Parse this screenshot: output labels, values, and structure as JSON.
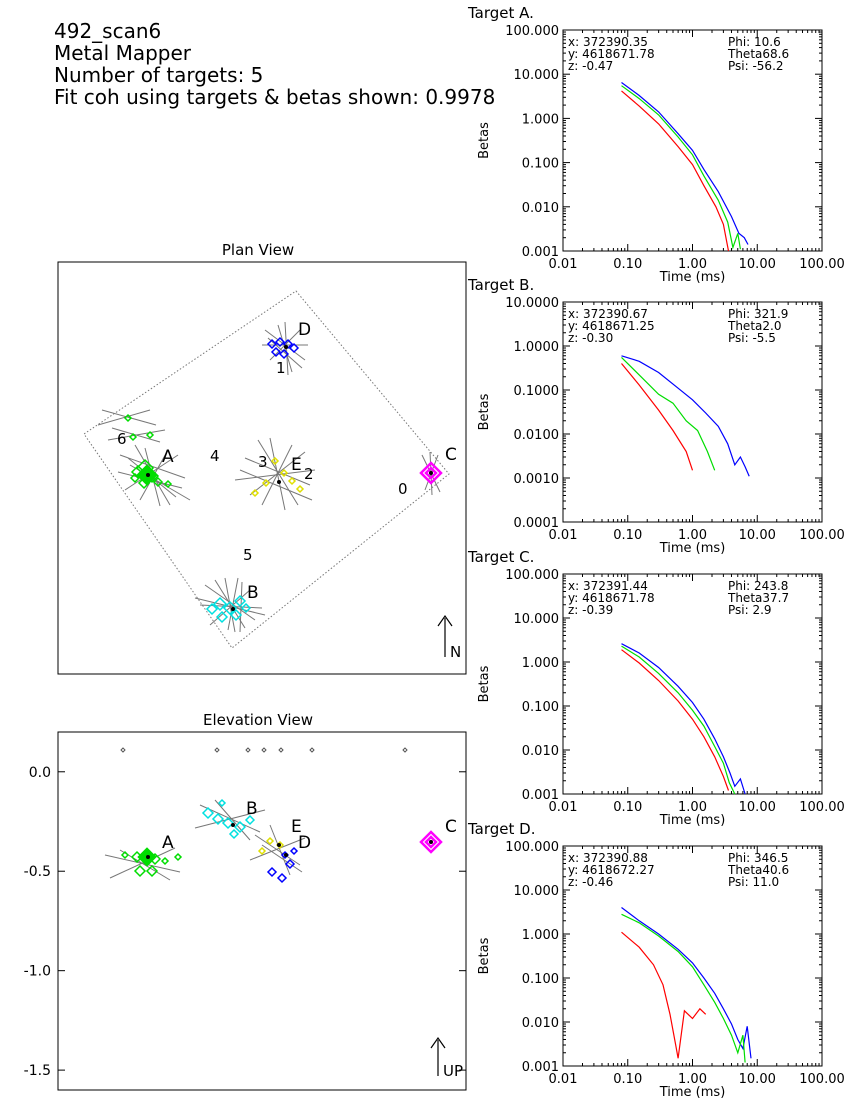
{
  "header": {
    "scan_name": "492_scan6",
    "sensor": "Metal Mapper",
    "targets_line": "Number of targets: 5",
    "fit_line": "Fit coh using targets & betas shown: 0.9978"
  },
  "colors": {
    "red": "#ff0000",
    "green": "#00dd00",
    "blue": "#0000ff",
    "cyan": "#00e0e0",
    "yellow": "#e0e000",
    "magenta": "#ff00ff",
    "gray": "#888888"
  },
  "chart_data": [
    {
      "type": "scatter",
      "title": "Plan View",
      "north_label": "N",
      "targets": [
        {
          "label": "A",
          "color": "green"
        },
        {
          "label": "B",
          "color": "cyan"
        },
        {
          "label": "C",
          "color": "magenta"
        },
        {
          "label": "D",
          "color": "blue"
        },
        {
          "label": "E",
          "subscript": "2",
          "color": "yellow"
        }
      ],
      "numbers": [
        "0",
        "1",
        "3",
        "4",
        "5",
        "6"
      ]
    },
    {
      "type": "scatter",
      "title": "Elevation View",
      "up_label": "UP",
      "ylim": [
        -1.6,
        0.2
      ],
      "yticks": [
        "0.0",
        "-0.5",
        "-1.0",
        "-1.5"
      ],
      "ytick_values": [
        0.0,
        -0.5,
        -1.0,
        -1.5
      ],
      "targets": [
        {
          "label": "A",
          "z": -0.47,
          "color": "green"
        },
        {
          "label": "B",
          "z": -0.3,
          "color": "cyan"
        },
        {
          "label": "C",
          "z": -0.39,
          "color": "magenta"
        },
        {
          "label": "D",
          "z": -0.46,
          "color": "blue"
        },
        {
          "label": "E",
          "z": -0.4,
          "color": "yellow"
        }
      ]
    },
    {
      "type": "line",
      "title": "Target A.",
      "ylabel": "Betas",
      "xlabel": "Time (ms)",
      "xscale": "log",
      "yscale": "log",
      "xticks": [
        "0.01",
        "0.10",
        "1.00",
        "10.00",
        "100.00"
      ],
      "yticks": [
        "100.000",
        "10.000",
        "1.000",
        "0.100",
        "0.010",
        "0.001"
      ],
      "ylim": [
        0.001,
        100
      ],
      "info": {
        "x": "x: 372390.35",
        "y": "y: 4618671.78",
        "z": "z: -0.47",
        "phi": "Phi:  10.6",
        "theta": "Theta68.6",
        "psi": "Psi:  -56.2"
      },
      "series": [
        {
          "color": "blue",
          "points": [
            [
              0.08,
              6.5
            ],
            [
              0.15,
              3.3
            ],
            [
              0.3,
              1.4
            ],
            [
              0.6,
              0.45
            ],
            [
              1.0,
              0.19
            ],
            [
              1.5,
              0.07
            ],
            [
              2.5,
              0.022
            ],
            [
              4.0,
              0.006
            ],
            [
              5.2,
              0.0025
            ],
            [
              6.3,
              0.002
            ],
            [
              7.2,
              0.0014
            ]
          ]
        },
        {
          "color": "green",
          "points": [
            [
              0.08,
              5.5
            ],
            [
              0.15,
              2.8
            ],
            [
              0.3,
              1.2
            ],
            [
              0.6,
              0.38
            ],
            [
              1.0,
              0.15
            ],
            [
              1.5,
              0.05
            ],
            [
              2.5,
              0.014
            ],
            [
              3.5,
              0.0045
            ],
            [
              4.2,
              0.0012
            ],
            [
              5.0,
              0.0025
            ],
            [
              5.5,
              0.0011
            ]
          ]
        },
        {
          "color": "red",
          "points": [
            [
              0.08,
              4.2
            ],
            [
              0.15,
              1.9
            ],
            [
              0.3,
              0.75
            ],
            [
              0.6,
              0.23
            ],
            [
              1.0,
              0.09
            ],
            [
              1.5,
              0.03
            ],
            [
              2.3,
              0.01
            ],
            [
              3.0,
              0.004
            ],
            [
              3.6,
              0.001
            ]
          ]
        }
      ]
    },
    {
      "type": "line",
      "title": "Target B.",
      "ylabel": "Betas",
      "xlabel": "Time (ms)",
      "xscale": "log",
      "yscale": "log",
      "xticks": [
        "0.01",
        "0.10",
        "1.00",
        "10.00",
        "100.00"
      ],
      "yticks": [
        "10.0000",
        "1.0000",
        "0.1000",
        "0.0100",
        "0.0010",
        "0.0001"
      ],
      "ylim": [
        0.0001,
        10
      ],
      "info": {
        "x": "x: 372390.67",
        "y": "y: 4618671.25",
        "z": "z: -0.30",
        "phi": "Phi:  321.9",
        "theta": "Theta2.0",
        "psi": "Psi:  -5.5"
      },
      "series": [
        {
          "color": "blue",
          "points": [
            [
              0.08,
              0.6
            ],
            [
              0.15,
              0.45
            ],
            [
              0.3,
              0.25
            ],
            [
              0.6,
              0.11
            ],
            [
              1.0,
              0.06
            ],
            [
              1.6,
              0.03
            ],
            [
              2.5,
              0.015
            ],
            [
              3.5,
              0.006
            ],
            [
              4.5,
              0.002
            ],
            [
              5.5,
              0.003
            ],
            [
              6.5,
              0.0018
            ],
            [
              7.5,
              0.0011
            ]
          ]
        },
        {
          "color": "green",
          "points": [
            [
              0.08,
              0.55
            ],
            [
              0.15,
              0.22
            ],
            [
              0.3,
              0.08
            ],
            [
              0.5,
              0.05
            ],
            [
              0.8,
              0.02
            ],
            [
              1.2,
              0.012
            ],
            [
              1.7,
              0.004
            ],
            [
              2.2,
              0.0015
            ]
          ]
        },
        {
          "color": "red",
          "points": [
            [
              0.08,
              0.4
            ],
            [
              0.15,
              0.13
            ],
            [
              0.3,
              0.035
            ],
            [
              0.5,
              0.012
            ],
            [
              0.8,
              0.004
            ],
            [
              1.0,
              0.0015
            ]
          ]
        }
      ]
    },
    {
      "type": "line",
      "title": "Target C.",
      "ylabel": "Betas",
      "xlabel": "Time (ms)",
      "xscale": "log",
      "yscale": "log",
      "xticks": [
        "0.01",
        "0.10",
        "1.00",
        "10.00",
        "100.00"
      ],
      "yticks": [
        "100.000",
        "10.000",
        "1.000",
        "0.100",
        "0.010",
        "0.001"
      ],
      "ylim": [
        0.001,
        100
      ],
      "info": {
        "x": "x: 372391.44",
        "y": "y: 4618671.78",
        "z": "z: -0.39",
        "phi": "Phi:  243.8",
        "theta": "Theta37.7",
        "psi": "Psi:  2.9"
      },
      "series": [
        {
          "color": "blue",
          "points": [
            [
              0.08,
              2.6
            ],
            [
              0.15,
              1.6
            ],
            [
              0.3,
              0.75
            ],
            [
              0.6,
              0.28
            ],
            [
              1.0,
              0.12
            ],
            [
              1.5,
              0.05
            ],
            [
              2.2,
              0.018
            ],
            [
              3.0,
              0.007
            ],
            [
              3.8,
              0.003
            ],
            [
              4.5,
              0.0015
            ],
            [
              5.5,
              0.0022
            ],
            [
              6.5,
              0.001
            ]
          ]
        },
        {
          "color": "green",
          "points": [
            [
              0.08,
              2.3
            ],
            [
              0.15,
              1.3
            ],
            [
              0.3,
              0.55
            ],
            [
              0.6,
              0.2
            ],
            [
              1.0,
              0.08
            ],
            [
              1.5,
              0.035
            ],
            [
              2.2,
              0.012
            ],
            [
              3.0,
              0.005
            ],
            [
              3.7,
              0.0018
            ],
            [
              4.5,
              0.001
            ]
          ]
        },
        {
          "color": "red",
          "points": [
            [
              0.08,
              1.9
            ],
            [
              0.15,
              0.95
            ],
            [
              0.3,
              0.38
            ],
            [
              0.6,
              0.13
            ],
            [
              1.0,
              0.05
            ],
            [
              1.5,
              0.02
            ],
            [
              2.2,
              0.007
            ],
            [
              3.0,
              0.0025
            ],
            [
              3.6,
              0.0012
            ]
          ]
        }
      ]
    },
    {
      "type": "line",
      "title": "Target D.",
      "ylabel": "Betas",
      "xlabel": "Time (ms)",
      "xscale": "log",
      "yscale": "log",
      "xticks": [
        "0.01",
        "0.10",
        "1.00",
        "10.00",
        "100.00"
      ],
      "yticks": [
        "100.000",
        "10.000",
        "1.000",
        "0.100",
        "0.010",
        "0.001"
      ],
      "ylim": [
        0.001,
        100
      ],
      "info": {
        "x": "x: 372390.88",
        "y": "y: 4618672.27",
        "z": "z: -0.46",
        "phi": "Phi:  346.5",
        "theta": "Theta40.6",
        "psi": "Psi:  11.0"
      },
      "series": [
        {
          "color": "blue",
          "points": [
            [
              0.08,
              4.0
            ],
            [
              0.15,
              2.0
            ],
            [
              0.3,
              1.0
            ],
            [
              0.6,
              0.45
            ],
            [
              1.0,
              0.22
            ],
            [
              1.5,
              0.1
            ],
            [
              2.2,
              0.045
            ],
            [
              3.0,
              0.02
            ],
            [
              4.0,
              0.009
            ],
            [
              5.0,
              0.004
            ],
            [
              6.0,
              0.0025
            ],
            [
              7.0,
              0.008
            ],
            [
              8.0,
              0.0015
            ]
          ]
        },
        {
          "color": "green",
          "points": [
            [
              0.08,
              2.8
            ],
            [
              0.15,
              1.8
            ],
            [
              0.3,
              0.9
            ],
            [
              0.6,
              0.4
            ],
            [
              1.0,
              0.18
            ],
            [
              1.5,
              0.07
            ],
            [
              2.2,
              0.028
            ],
            [
              3.0,
              0.012
            ],
            [
              4.0,
              0.005
            ],
            [
              5.0,
              0.002
            ],
            [
              6.0,
              0.005
            ],
            [
              6.5,
              0.0012
            ]
          ]
        },
        {
          "color": "red",
          "points": [
            [
              0.08,
              1.1
            ],
            [
              0.15,
              0.5
            ],
            [
              0.25,
              0.2
            ],
            [
              0.35,
              0.07
            ],
            [
              0.45,
              0.015
            ],
            [
              0.55,
              0.003
            ],
            [
              0.6,
              0.0015
            ],
            [
              0.75,
              0.018
            ],
            [
              1.0,
              0.012
            ],
            [
              1.3,
              0.02
            ],
            [
              1.6,
              0.015
            ]
          ]
        }
      ]
    }
  ]
}
